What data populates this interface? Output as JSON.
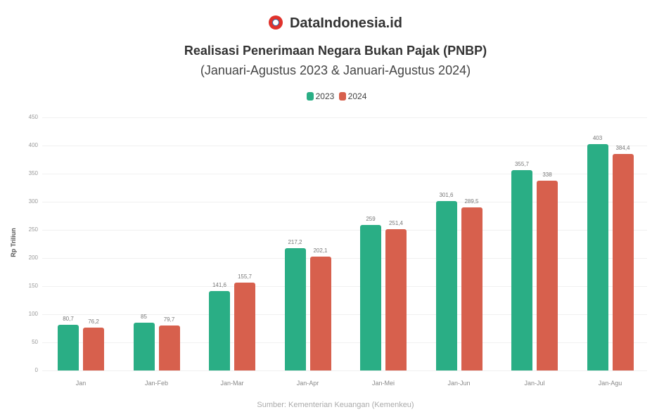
{
  "brand": {
    "name": "DataIndonesia.id",
    "logo_icon": "magnifier-logo-icon"
  },
  "header": {
    "title": "Realisasi Penerimaan Negara Bukan Pajak (PNBP)",
    "subtitle": "(Januari-Agustus 2023 & Januari-Agustus 2024)"
  },
  "legend": [
    {
      "label": "2023",
      "color": "#2aae85"
    },
    {
      "label": "2024",
      "color": "#d7604d"
    }
  ],
  "source": "Sumber: Kementerian Keuangan (Kemenkeu)",
  "chart_data": {
    "type": "bar",
    "title": "Realisasi Penerimaan Negara Bukan Pajak (PNBP)",
    "subtitle": "(Januari-Agustus 2023 & Januari-Agustus 2024)",
    "xlabel": "",
    "ylabel": "Rp Triliun",
    "categories": [
      "Jan",
      "Jan-Feb",
      "Jan-Mar",
      "Jan-Apr",
      "Jan-Mei",
      "Jan-Jun",
      "Jan-Jul",
      "Jan-Agu"
    ],
    "series": [
      {
        "name": "2023",
        "color": "#2aae85",
        "values": [
          80.7,
          85,
          141.6,
          217.2,
          259,
          301.6,
          355.7,
          403
        ]
      },
      {
        "name": "2024",
        "color": "#d7604d",
        "values": [
          76.2,
          79.7,
          155.7,
          202.1,
          251.4,
          289.5,
          338,
          384.4
        ]
      }
    ],
    "ylim": [
      0,
      450
    ],
    "yticks": [
      0,
      50,
      100,
      150,
      200,
      250,
      300,
      350,
      400,
      450
    ],
    "grid": true,
    "legend_position": "top"
  }
}
